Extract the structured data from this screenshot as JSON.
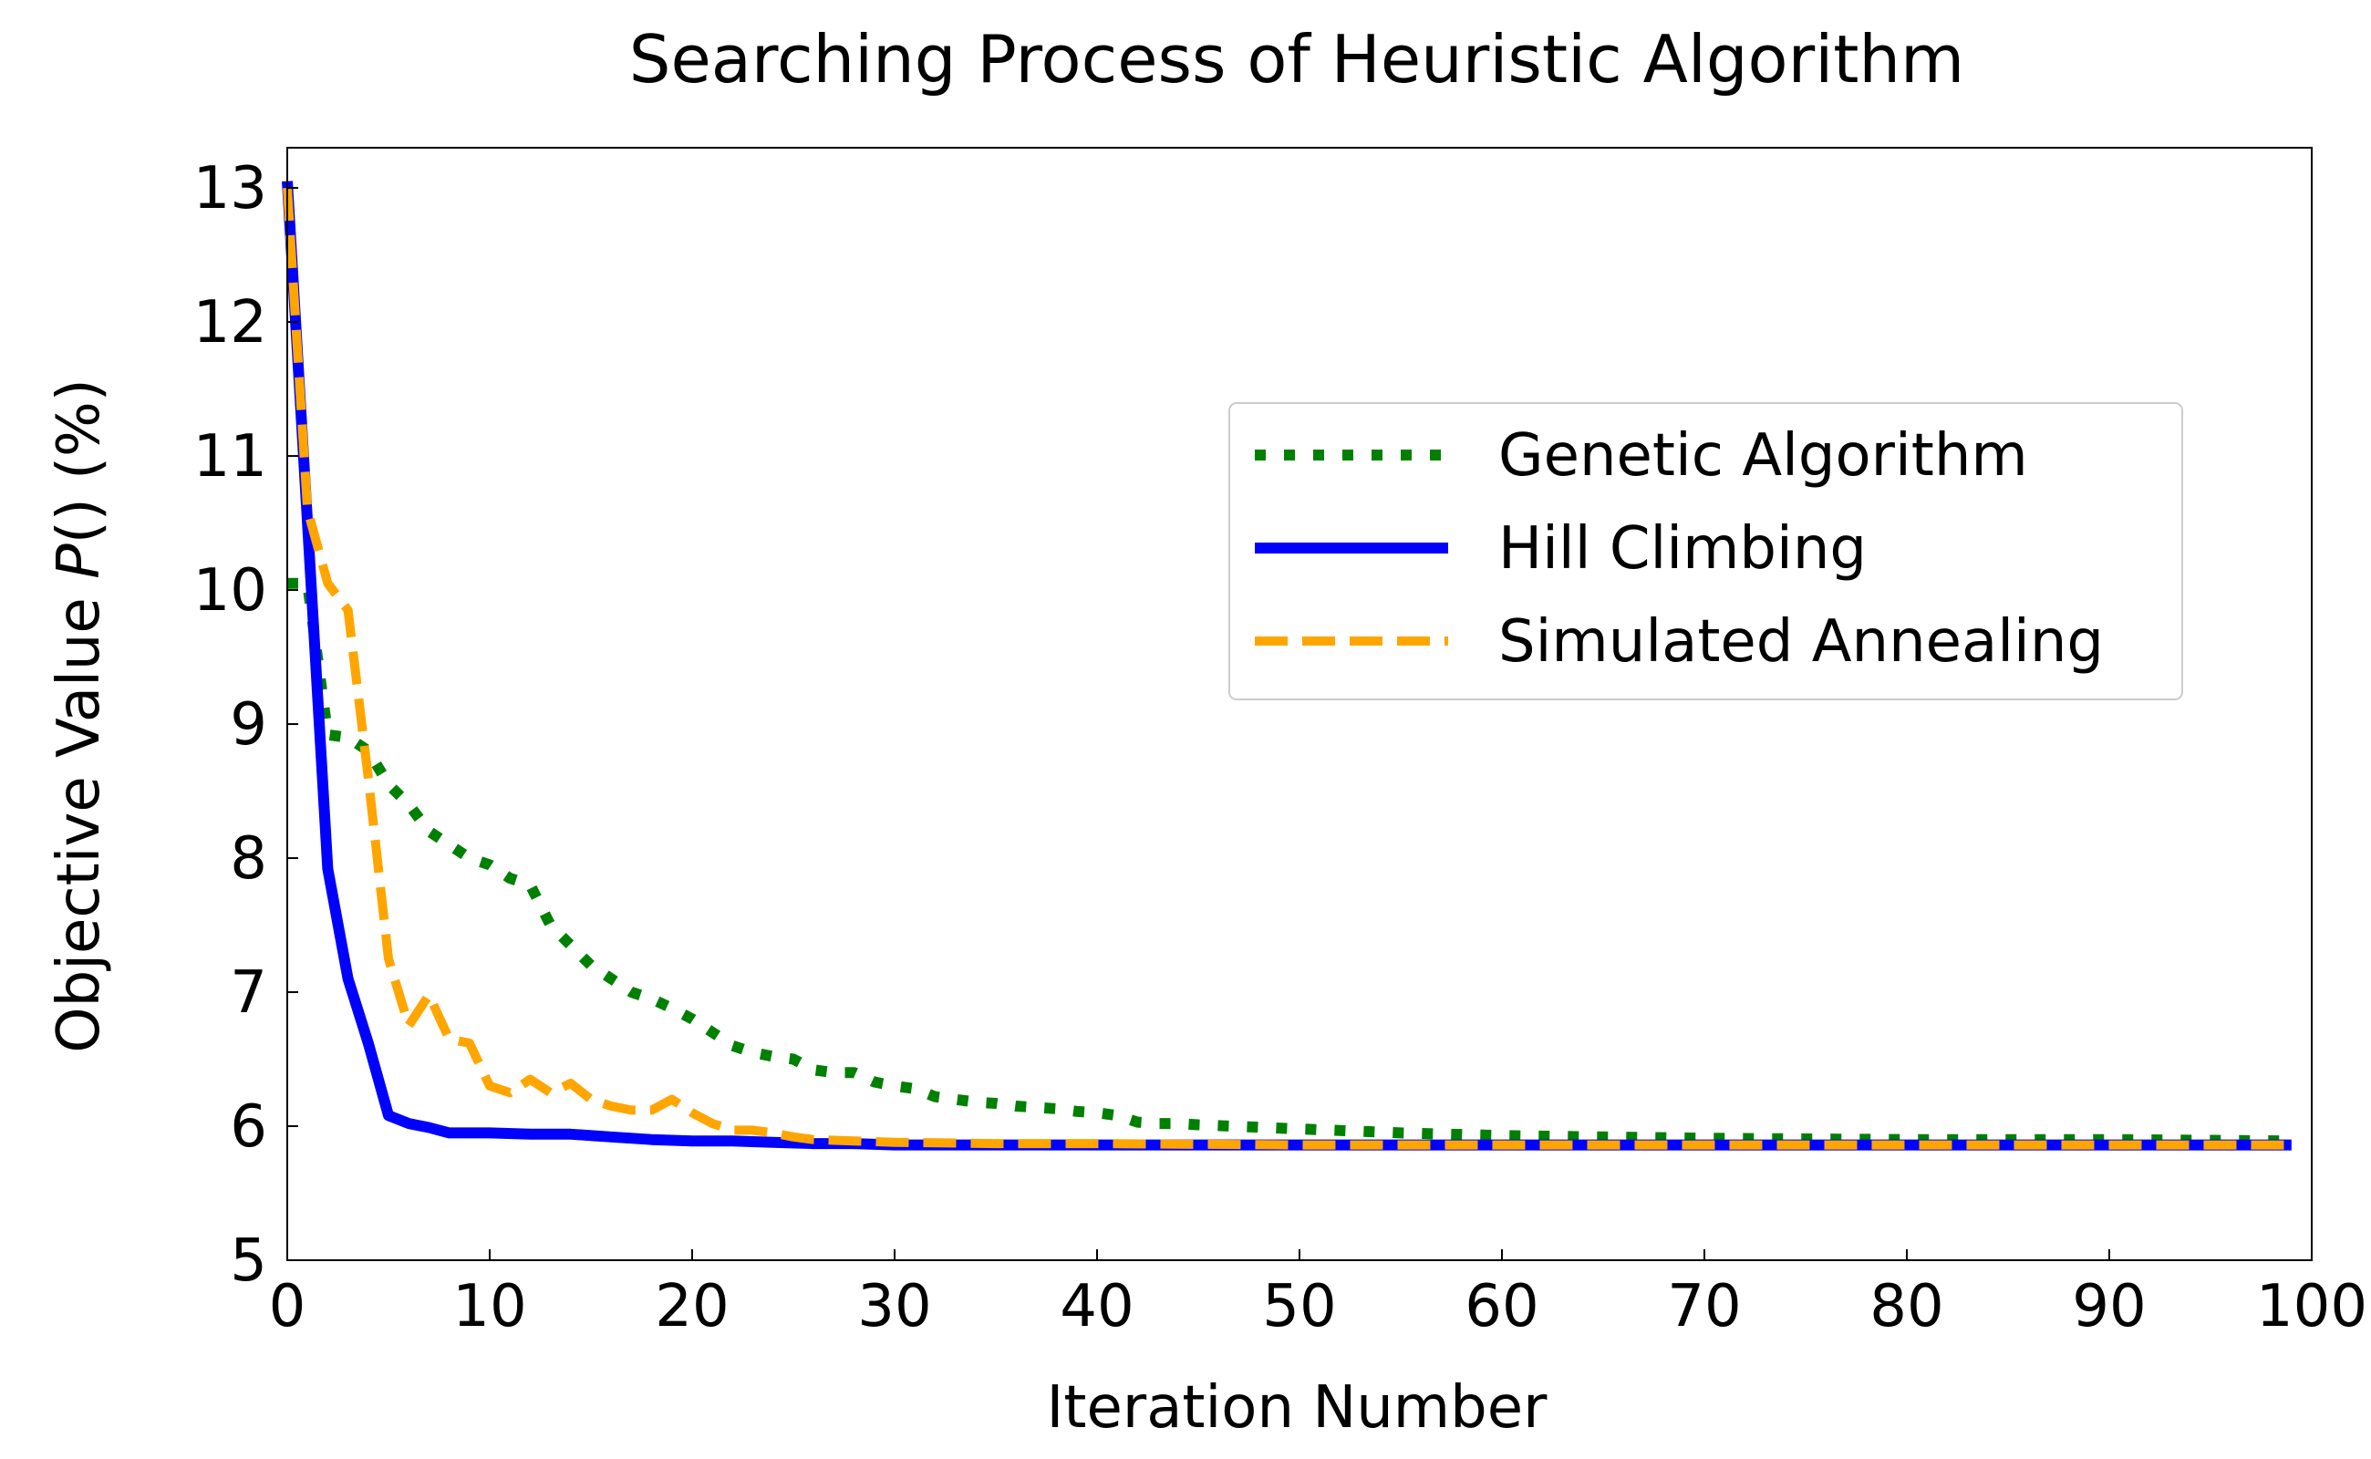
{
  "chart_data": {
    "type": "line",
    "title": "Searching Process of Heuristic Algorithm",
    "xlabel": "Iteration Number",
    "ylabel_prefix": "Objective Value ",
    "ylabel_italic": "P",
    "ylabel_suffix": "() (%)",
    "xlim": [
      0,
      100
    ],
    "ylim": [
      5,
      13.3
    ],
    "xticks": [
      0,
      10,
      20,
      30,
      40,
      50,
      60,
      70,
      80,
      90,
      100
    ],
    "yticks": [
      5,
      6,
      7,
      8,
      9,
      10,
      11,
      12,
      13
    ],
    "grid": false,
    "legend_position": "upper-right",
    "series": [
      {
        "name": "Genetic Algorithm",
        "color": "#008000",
        "style": "dotted",
        "x": [
          0,
          1,
          2,
          3,
          4,
          5,
          6,
          7,
          8,
          9,
          10,
          11,
          12,
          13,
          14,
          15,
          16,
          17,
          18,
          19,
          20,
          21,
          22,
          23,
          24,
          25,
          26,
          27,
          28,
          29,
          30,
          31,
          32,
          33,
          34,
          35,
          36,
          37,
          38,
          39,
          40,
          41,
          42,
          43,
          44,
          45,
          50,
          55,
          60,
          65,
          70,
          80,
          90,
          99
        ],
        "y": [
          10.05,
          10.05,
          8.92,
          8.9,
          8.8,
          8.55,
          8.4,
          8.2,
          8.1,
          8.0,
          7.95,
          7.85,
          7.8,
          7.5,
          7.35,
          7.2,
          7.1,
          7.0,
          6.95,
          6.88,
          6.8,
          6.7,
          6.6,
          6.55,
          6.52,
          6.5,
          6.42,
          6.4,
          6.4,
          6.33,
          6.3,
          6.28,
          6.22,
          6.2,
          6.18,
          6.17,
          6.15,
          6.14,
          6.13,
          6.11,
          6.1,
          6.08,
          6.03,
          6.02,
          6.02,
          6.01,
          5.98,
          5.95,
          5.93,
          5.92,
          5.91,
          5.9,
          5.9,
          5.89
        ]
      },
      {
        "name": "Hill Climbing",
        "color": "#0000ff",
        "style": "solid",
        "x": [
          0,
          1,
          2,
          3,
          4,
          5,
          6,
          7,
          8,
          10,
          12,
          14,
          16,
          18,
          20,
          22,
          24,
          26,
          28,
          30,
          40,
          50,
          60,
          70,
          80,
          90,
          99
        ],
        "y": [
          13.05,
          10.5,
          7.92,
          7.1,
          6.62,
          6.08,
          6.02,
          5.99,
          5.95,
          5.95,
          5.94,
          5.94,
          5.92,
          5.9,
          5.89,
          5.89,
          5.88,
          5.87,
          5.87,
          5.86,
          5.86,
          5.86,
          5.86,
          5.86,
          5.86,
          5.86,
          5.86
        ]
      },
      {
        "name": "Simulated Annealing",
        "color": "#ffa500",
        "style": "dashed",
        "x": [
          0,
          1,
          2,
          3,
          4,
          5,
          6,
          7,
          8,
          9,
          10,
          11,
          12,
          13,
          14,
          15,
          16,
          17,
          18,
          19,
          20,
          21,
          22,
          23,
          24,
          25,
          26,
          28,
          30,
          35,
          40,
          50,
          60,
          70,
          80,
          90,
          99
        ],
        "y": [
          13.0,
          10.6,
          10.05,
          9.85,
          8.6,
          7.25,
          6.75,
          6.98,
          6.65,
          6.62,
          6.3,
          6.25,
          6.35,
          6.25,
          6.32,
          6.2,
          6.15,
          6.12,
          6.12,
          6.2,
          6.1,
          6.02,
          5.97,
          5.97,
          5.95,
          5.92,
          5.9,
          5.89,
          5.88,
          5.87,
          5.87,
          5.86,
          5.86,
          5.86,
          5.86,
          5.86,
          5.86
        ]
      }
    ]
  }
}
